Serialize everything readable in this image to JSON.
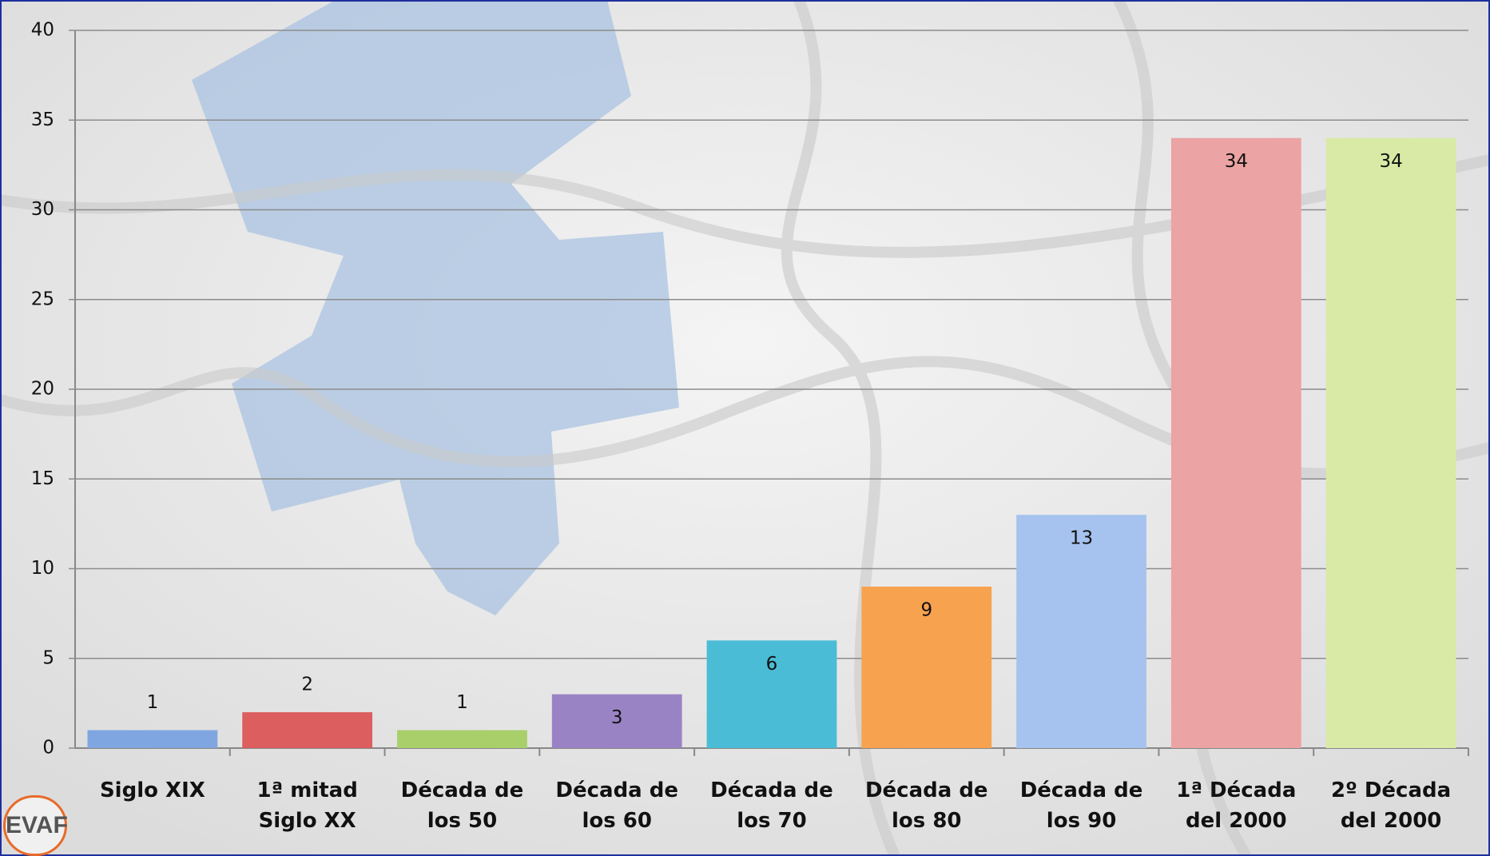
{
  "chart_data": {
    "type": "bar",
    "categories": [
      "Siglo XIX",
      "1ª mitad Siglo XX",
      "Década de los 50",
      "Década de los 60",
      "Década de los 70",
      "Década de los 80",
      "Década de los 90",
      "1ª Década del 2000",
      "2º Década del 2000"
    ],
    "values": [
      1,
      2,
      1,
      3,
      6,
      9,
      13,
      34,
      34
    ],
    "colors": [
      "#7fa6e0",
      "#dc5e5e",
      "#a9cf6b",
      "#9a83c4",
      "#4bbcd6",
      "#f7a24e",
      "#a6c3ef",
      "#eca3a3",
      "#d8eaa5"
    ],
    "ylim": [
      0,
      40
    ],
    "yticks": [
      0,
      5,
      10,
      15,
      20,
      25,
      30,
      35,
      40
    ],
    "grid": true
  },
  "logo": "EVAF"
}
